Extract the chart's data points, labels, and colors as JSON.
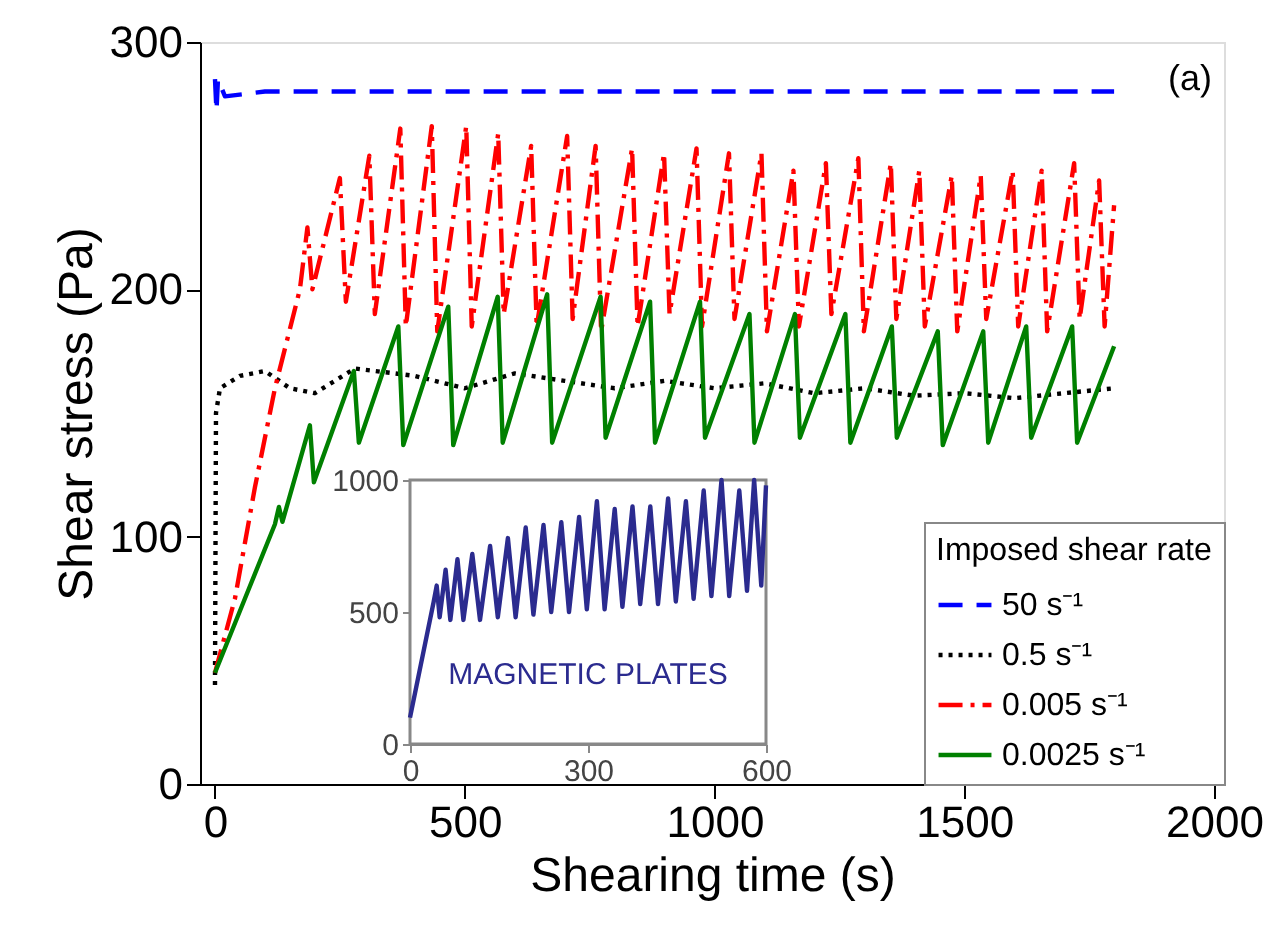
{
  "chart_data": [
    {
      "type": "line",
      "xlabel": "Shearing time (s)",
      "ylabel": "Shear stress (Pa)",
      "legend_title": "Imposed shear rate",
      "legend": "bottom right",
      "grid": false,
      "marker": "none",
      "xlim": [
        -30,
        2020
      ],
      "ylim": [
        0,
        300
      ],
      "xticks": [
        0,
        500,
        1000,
        1500,
        2000
      ],
      "yticks": [
        0,
        100,
        200,
        300
      ],
      "annotations": [
        "(a)"
      ],
      "series": [
        {
          "name": "50 s⁻¹",
          "color": "#0000ff",
          "line_style": "dashed",
          "x": [
            0,
            3,
            6,
            20,
            100,
            400,
            800,
            1200,
            1600,
            1800
          ],
          "values": [
            285,
            272,
            285,
            278,
            280,
            280,
            280,
            280,
            280,
            280
          ]
        },
        {
          "name": "0.5 s⁻¹",
          "color": "#000000",
          "line_style": "dotted",
          "x": [
            0,
            2,
            10,
            50,
            100,
            150,
            200,
            280,
            400,
            500,
            600,
            700,
            800,
            900,
            1000,
            1100,
            1200,
            1300,
            1400,
            1500,
            1600,
            1700,
            1800
          ],
          "values": [
            40,
            150,
            160,
            165,
            167,
            160,
            158,
            168,
            165,
            160,
            166,
            163,
            160,
            163,
            160,
            162,
            158,
            160,
            157,
            158,
            156,
            158,
            160
          ]
        },
        {
          "name": "0.005 s⁻¹",
          "color": "#ff0000",
          "line_style": "dashdot",
          "x": [
            0,
            40,
            80,
            120,
            170,
            185,
            195,
            250,
            262,
            309,
            320,
            371,
            382,
            434,
            445,
            503,
            514,
            567,
            578,
            633,
            644,
            705,
            716,
            762,
            773,
            835,
            846,
            899,
            910,
            964,
            975,
            1029,
            1040,
            1094,
            1105,
            1158,
            1169,
            1223,
            1234,
            1288,
            1299,
            1353,
            1364,
            1410,
            1421,
            1475,
            1486,
            1533,
            1544,
            1597,
            1608,
            1655,
            1666,
            1720,
            1731,
            1770,
            1781,
            1800
          ],
          "values": [
            45,
            75,
            120,
            160,
            200,
            225,
            200,
            245,
            195,
            254,
            190,
            265,
            185,
            266,
            183,
            266,
            185,
            263,
            190,
            258,
            185,
            262,
            188,
            258,
            183,
            257,
            185,
            255,
            190,
            257,
            185,
            255,
            188,
            255,
            183,
            248,
            185,
            251,
            190,
            253,
            183,
            251,
            188,
            248,
            185,
            246,
            183,
            246,
            188,
            248,
            185,
            248,
            183,
            251,
            188,
            244,
            185,
            234
          ]
        },
        {
          "name": "0.0025 s⁻¹",
          "color": "#008000",
          "line_style": "solid",
          "x": [
            0,
            60,
            120,
            128,
            135,
            190,
            198,
            278,
            288,
            367,
            377,
            467,
            477,
            566,
            576,
            665,
            675,
            772,
            782,
            871,
            881,
            971,
            981,
            1070,
            1080,
            1161,
            1171,
            1262,
            1272,
            1355,
            1365,
            1447,
            1457,
            1538,
            1548,
            1624,
            1634,
            1716,
            1726,
            1800
          ],
          "values": [
            45,
            75,
            105,
            112,
            106,
            145,
            122,
            167,
            138,
            185,
            137,
            193,
            137,
            197,
            138,
            198,
            138,
            197,
            140,
            195,
            138,
            195,
            140,
            190,
            138,
            190,
            140,
            190,
            138,
            185,
            140,
            183,
            137,
            183,
            138,
            185,
            140,
            185,
            138,
            177
          ]
        }
      ]
    },
    {
      "type": "line",
      "xlim": [
        0,
        600
      ],
      "ylim": [
        0,
        1000
      ],
      "xticks": [
        0,
        300,
        600
      ],
      "yticks": [
        0,
        500,
        1000
      ],
      "grid": false,
      "marker": "none",
      "legend": false,
      "annotations": [
        "MAGNETIC PLATES"
      ],
      "series": [
        {
          "color": "#2b2b8f",
          "line_style": "solid",
          "x": [
            0,
            40,
            45,
            50,
            60,
            68,
            80,
            90,
            105,
            118,
            135,
            148,
            165,
            178,
            195,
            208,
            225,
            238,
            255,
            268,
            285,
            298,
            315,
            328,
            345,
            358,
            375,
            388,
            405,
            418,
            435,
            448,
            465,
            478,
            495,
            508,
            525,
            538,
            555,
            568,
            580,
            592,
            600
          ],
          "values": [
            100,
            540,
            600,
            480,
            660,
            470,
            700,
            470,
            720,
            470,
            750,
            480,
            780,
            480,
            820,
            490,
            830,
            500,
            840,
            500,
            860,
            510,
            920,
            510,
            890,
            520,
            900,
            530,
            900,
            530,
            930,
            540,
            920,
            550,
            960,
            560,
            1000,
            560,
            960,
            580,
            1000,
            600,
            980
          ]
        }
      ]
    }
  ]
}
